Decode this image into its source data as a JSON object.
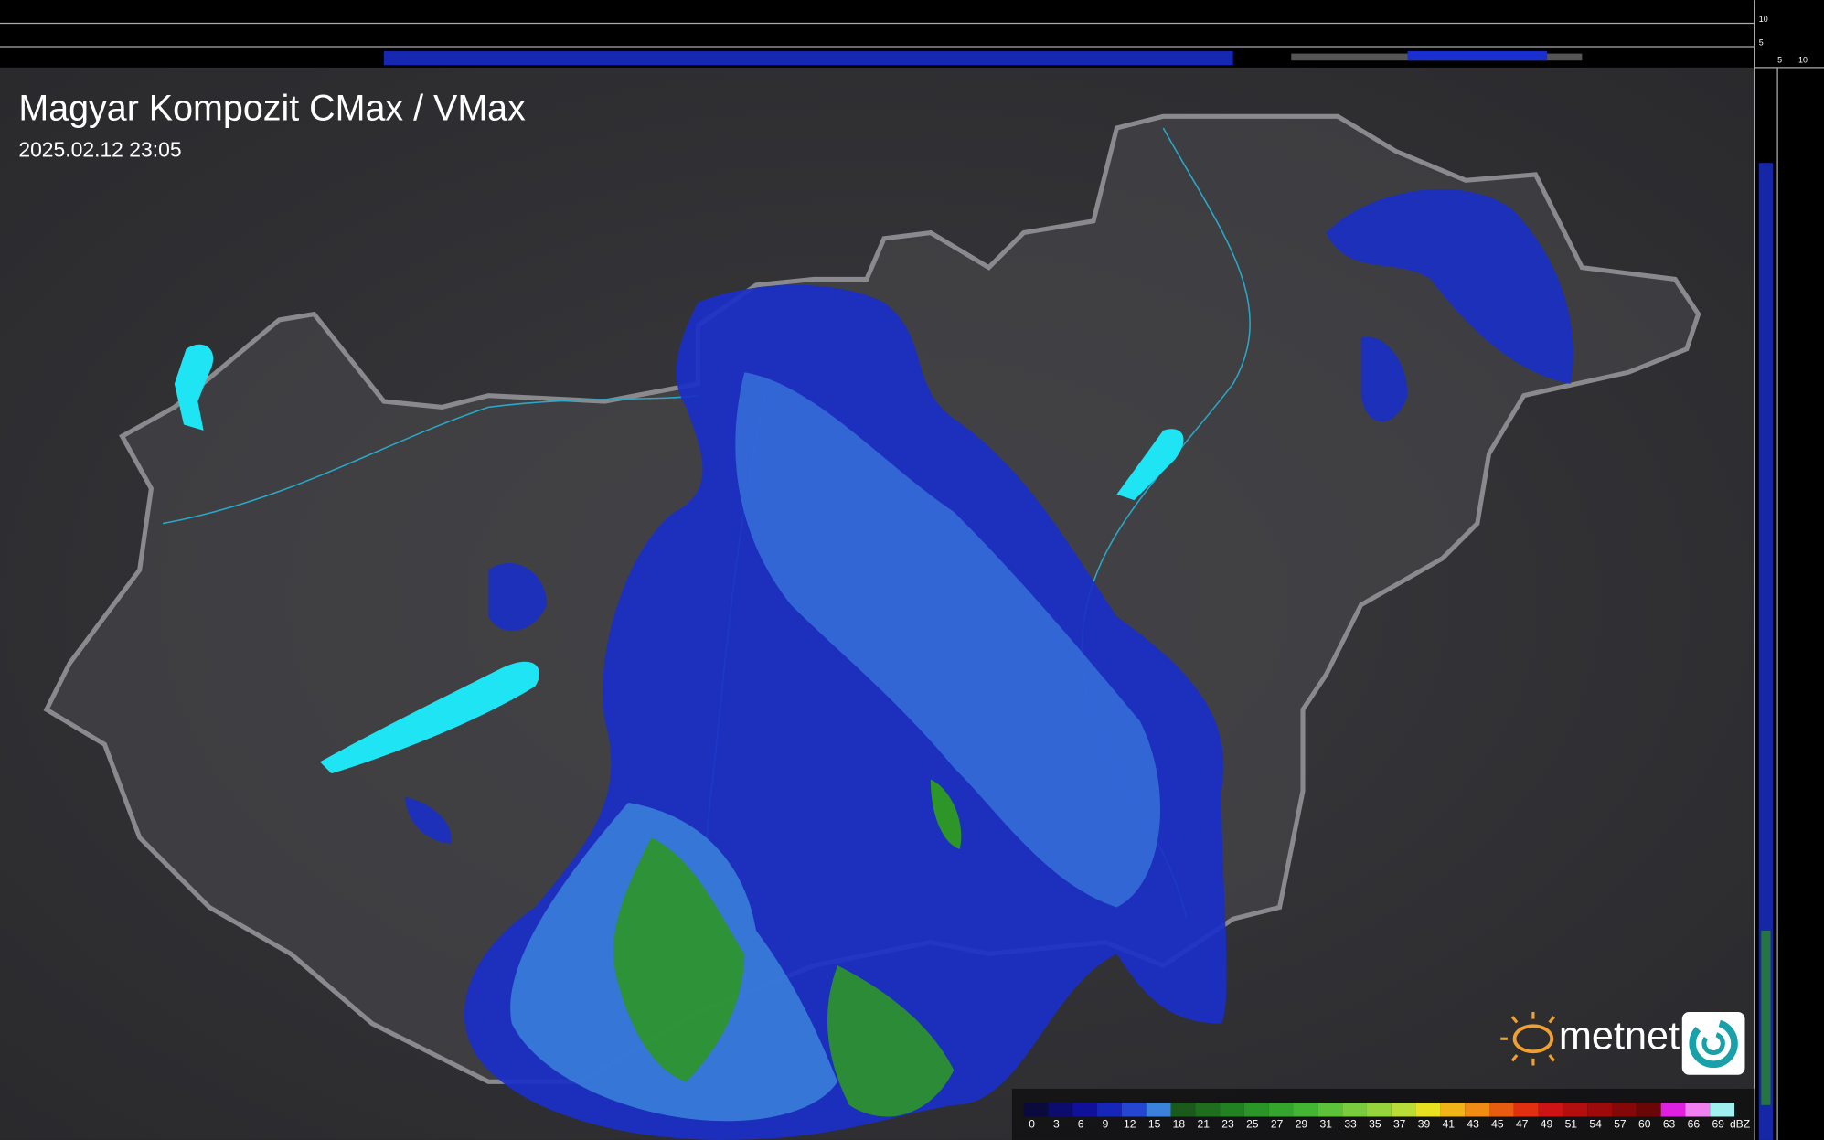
{
  "header": {
    "title": "Magyar Kompozit CMax / VMax",
    "timestamp": "2025.02.12 23:05"
  },
  "legend": {
    "items": [
      {
        "label": "0",
        "color": "#0a0a3c"
      },
      {
        "label": "3",
        "color": "#0c0c6e"
      },
      {
        "label": "6",
        "color": "#10109a"
      },
      {
        "label": "9",
        "color": "#1626b8"
      },
      {
        "label": "12",
        "color": "#2446d0"
      },
      {
        "label": "15",
        "color": "#3a82dc"
      },
      {
        "label": "18",
        "color": "#1a5a1a"
      },
      {
        "label": "21",
        "color": "#1e6e1e"
      },
      {
        "label": "23",
        "color": "#228222"
      },
      {
        "label": "25",
        "color": "#2a9628"
      },
      {
        "label": "27",
        "color": "#34a62e"
      },
      {
        "label": "29",
        "color": "#44b434"
      },
      {
        "label": "31",
        "color": "#5cc23a"
      },
      {
        "label": "33",
        "color": "#78cc3e"
      },
      {
        "label": "35",
        "color": "#96d43e"
      },
      {
        "label": "37",
        "color": "#b8dc38"
      },
      {
        "label": "39",
        "color": "#e8e020"
      },
      {
        "label": "41",
        "color": "#f0b418"
      },
      {
        "label": "43",
        "color": "#ee8c14"
      },
      {
        "label": "45",
        "color": "#e85c12"
      },
      {
        "label": "47",
        "color": "#e03010"
      },
      {
        "label": "49",
        "color": "#cc1414"
      },
      {
        "label": "51",
        "color": "#b40e0e"
      },
      {
        "label": "54",
        "color": "#9c0a0a"
      },
      {
        "label": "57",
        "color": "#840808"
      },
      {
        "label": "60",
        "color": "#6a0606"
      },
      {
        "label": "63",
        "color": "#e020e0"
      },
      {
        "label": "66",
        "color": "#f080f0"
      },
      {
        "label": "69",
        "color": "#a0f0f0"
      }
    ],
    "unit": "dBZ"
  },
  "logo": {
    "text": "metnet"
  },
  "side_scale": {
    "top": [
      "10",
      "5"
    ],
    "bottom": [
      "5",
      "10"
    ]
  }
}
